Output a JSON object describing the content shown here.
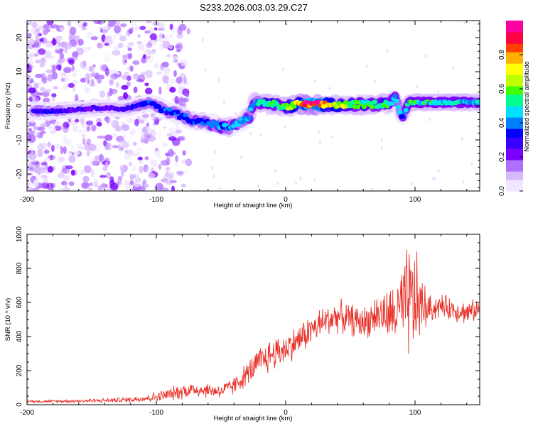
{
  "figure_title": "S233.2026.003.03.29.C27",
  "colors": {
    "snr_line": "#e8332b",
    "axis": "#000000",
    "colormap": [
      "#f0e6ff",
      "#d8b8ff",
      "#b070ff",
      "#7a00ff",
      "#3a00ff",
      "#0000ff",
      "#0080ff",
      "#00e0ff",
      "#00ff90",
      "#40ff00",
      "#c0ff00",
      "#ffff00",
      "#ffb000",
      "#ff4000",
      "#ff0040",
      "#ff00a0"
    ]
  },
  "chart_data": [
    {
      "type": "heatmap",
      "title": "S233.2026.003.03.29.C27",
      "xlabel": "Height of straight line (km)",
      "ylabel": "Frequency (Hz)",
      "xlim": [
        -200,
        150
      ],
      "ylim": [
        -25,
        25
      ],
      "xticks": [
        "-200",
        "-100",
        "0",
        "100"
      ],
      "yticks": [
        "20",
        "10",
        "0",
        "-10",
        "-20"
      ],
      "colorbar": {
        "label": "Normalized spectral amplitude",
        "range": [
          0,
          1
        ],
        "ticks": [
          "0.0",
          "0.2",
          "0.4",
          "0.6",
          "0.8"
        ]
      },
      "ridge": [
        {
          "x": -190,
          "freq": -1.5,
          "amp": 0.3
        },
        {
          "x": -175,
          "freq": -1.5,
          "amp": 0.28
        },
        {
          "x": -160,
          "freq": -1.0,
          "amp": 0.25
        },
        {
          "x": -140,
          "freq": -0.5,
          "amp": 0.25
        },
        {
          "x": -125,
          "freq": -1.0,
          "amp": 0.25
        },
        {
          "x": -115,
          "freq": 0.0,
          "amp": 0.32
        },
        {
          "x": -105,
          "freq": 1.0,
          "amp": 0.35
        },
        {
          "x": -95,
          "freq": -1.0,
          "amp": 0.35
        },
        {
          "x": -80,
          "freq": -3.0,
          "amp": 0.36
        },
        {
          "x": -70,
          "freq": -4.5,
          "amp": 0.38
        },
        {
          "x": -60,
          "freq": -5.0,
          "amp": 0.38
        },
        {
          "x": -45,
          "freq": -6.5,
          "amp": 0.4
        },
        {
          "x": -35,
          "freq": -5.0,
          "amp": 0.4
        },
        {
          "x": -28,
          "freq": -3.0,
          "amp": 0.4
        },
        {
          "x": -25,
          "freq": 1.0,
          "amp": 0.45
        },
        {
          "x": -10,
          "freq": 0.5,
          "amp": 0.55
        },
        {
          "x": 0,
          "freq": -0.5,
          "amp": 0.55
        },
        {
          "x": 10,
          "freq": 0.5,
          "amp": 0.75
        },
        {
          "x": 20,
          "freq": 0.3,
          "amp": 0.95
        },
        {
          "x": 35,
          "freq": 0.3,
          "amp": 0.7
        },
        {
          "x": 50,
          "freq": 0.3,
          "amp": 0.6
        },
        {
          "x": 65,
          "freq": 0.4,
          "amp": 0.55
        },
        {
          "x": 80,
          "freq": 0.6,
          "amp": 0.52
        },
        {
          "x": 85,
          "freq": 2.5,
          "amp": 0.45
        },
        {
          "x": 90,
          "freq": -4.0,
          "amp": 0.4
        },
        {
          "x": 95,
          "freq": 1.0,
          "amp": 0.5
        },
        {
          "x": 110,
          "freq": 1.0,
          "amp": 0.5
        },
        {
          "x": 130,
          "freq": 1.0,
          "amp": 0.48
        },
        {
          "x": 150,
          "freq": 1.0,
          "amp": 0.46
        }
      ]
    },
    {
      "type": "line",
      "xlabel": "Height of straight line (km)",
      "ylabel": "SNR (10 * v/v)",
      "xlim": [
        -200,
        150
      ],
      "ylim": [
        0,
        1000
      ],
      "xticks": [
        "-200",
        "-100",
        "0",
        "100"
      ],
      "yticks": [
        "1000",
        "800",
        "600",
        "400",
        "200",
        "0"
      ],
      "series": [
        {
          "name": "SNR",
          "x": [
            -200,
            -180,
            -160,
            -140,
            -120,
            -100,
            -90,
            -80,
            -70,
            -60,
            -50,
            -40,
            -30,
            -20,
            -10,
            0,
            10,
            20,
            30,
            40,
            50,
            60,
            70,
            80,
            90,
            95,
            100,
            110,
            120,
            130,
            140,
            150
          ],
          "values": [
            20,
            20,
            22,
            25,
            30,
            45,
            60,
            80,
            90,
            85,
            80,
            110,
            180,
            250,
            300,
            330,
            380,
            440,
            490,
            520,
            500,
            480,
            530,
            520,
            560,
            600,
            600,
            560,
            580,
            560,
            540,
            560
          ],
          "noise": [
            10,
            10,
            12,
            15,
            20,
            35,
            45,
            55,
            55,
            50,
            50,
            65,
            80,
            110,
            120,
            110,
            110,
            110,
            110,
            110,
            110,
            110,
            140,
            180,
            280,
            420,
            380,
            100,
            80,
            80,
            80,
            70
          ]
        }
      ]
    }
  ]
}
